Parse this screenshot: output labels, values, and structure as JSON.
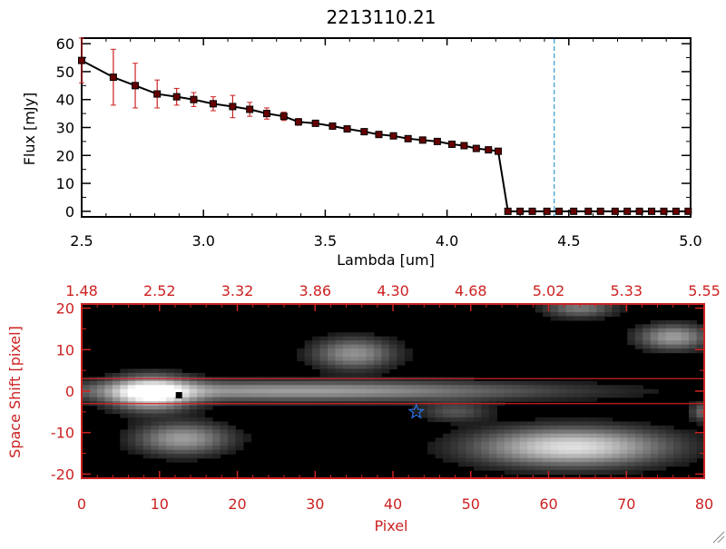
{
  "colors": {
    "axis_black": "#000000",
    "axis_red": "#cc2222",
    "errorbar_red": "#cc2222",
    "marker_fill": "#660000",
    "dashed_line_blue": "#3399cc",
    "star_blue": "#2a6fd8",
    "panel_bg": "#000000"
  },
  "chart_data": [
    {
      "type": "line",
      "title": "2213110.21",
      "xlabel": "Lambda [um]",
      "ylabel": "Flux [mJy]",
      "xlim": [
        2.5,
        5.0
      ],
      "ylim": [
        -2,
        62
      ],
      "x_ticks": [
        "2.5",
        "3.0",
        "3.5",
        "4.0",
        "4.5",
        "5.0"
      ],
      "x_tick_values": [
        2.5,
        3.0,
        3.5,
        4.0,
        4.5,
        5.0
      ],
      "y_ticks": [
        "0",
        "10",
        "20",
        "30",
        "40",
        "50",
        "60"
      ],
      "y_tick_values": [
        0,
        10,
        20,
        30,
        40,
        50,
        60
      ],
      "vertical_line": {
        "x": 4.44,
        "style": "dashed",
        "color": "blue"
      },
      "series": [
        {
          "x": [
            2.5,
            2.63,
            2.72,
            2.81,
            2.89,
            2.96,
            3.04,
            3.12,
            3.19,
            3.26,
            3.33,
            3.39,
            3.46,
            3.53,
            3.59,
            3.66,
            3.72,
            3.78,
            3.84,
            3.9,
            3.96,
            4.02,
            4.07,
            4.12,
            4.17,
            4.21,
            4.25,
            4.3,
            4.35,
            4.41,
            4.46,
            4.52,
            4.58,
            4.63,
            4.69,
            4.74,
            4.79,
            4.84,
            4.89,
            4.94,
            4.99
          ],
          "y": [
            54,
            48,
            45,
            42,
            41,
            40,
            38.5,
            37.5,
            36.5,
            35,
            34,
            32,
            31.5,
            30.5,
            29.5,
            28.5,
            27.5,
            27,
            26,
            25.5,
            25,
            24,
            23.5,
            22.5,
            22,
            21.5,
            0,
            0,
            0,
            0,
            0,
            0,
            0,
            0,
            0,
            0,
            0,
            0,
            0,
            0,
            0
          ],
          "yerr": [
            8,
            10,
            8,
            5,
            3,
            2.5,
            2.5,
            4,
            2.5,
            2,
            1.5,
            1.2,
            1,
            1,
            1,
            1,
            0.8,
            0.8,
            0.8,
            0.8,
            0.8,
            0.8,
            0.8,
            0.8,
            0.8,
            0.8,
            0,
            0,
            0,
            0,
            0,
            0,
            0,
            0,
            0,
            0,
            0,
            0,
            0,
            0,
            0
          ]
        }
      ]
    },
    {
      "type": "heatmap",
      "xlabel": "Pixel",
      "ylabel": "Space Shift [pixel]",
      "xlim": [
        0,
        80
      ],
      "ylim": [
        -21,
        21
      ],
      "x_ticks": [
        "0",
        "10",
        "20",
        "30",
        "40",
        "50",
        "60",
        "70",
        "80"
      ],
      "x_tick_values": [
        0,
        10,
        20,
        30,
        40,
        50,
        60,
        70,
        80
      ],
      "y_ticks": [
        "-20",
        "-10",
        "0",
        "10",
        "20"
      ],
      "y_tick_values": [
        -20,
        -10,
        0,
        10,
        20
      ],
      "top_axis_ticks": [
        "1.48",
        "2.52",
        "3.32",
        "3.86",
        "4.30",
        "4.68",
        "5.02",
        "5.33",
        "5.55"
      ],
      "top_axis_tick_values": [
        0,
        10,
        20,
        30,
        40,
        50,
        60,
        70,
        80
      ],
      "extraction_lines_y": [
        3,
        -3
      ],
      "black_marker": {
        "x": 12.5,
        "y": -1
      },
      "star_marker": {
        "x": 43,
        "y": -5
      },
      "blobs": [
        {
          "x": 9,
          "y": -0.5,
          "sx": 3.5,
          "sy": 2.6,
          "amp": 1.0
        },
        {
          "x": 28,
          "y": 0,
          "sx": 22,
          "sy": 1.6,
          "amp": 0.55
        },
        {
          "x": 35,
          "y": 9,
          "sx": 3.5,
          "sy": 2.5,
          "amp": 0.5
        },
        {
          "x": 13,
          "y": -11.5,
          "sx": 4,
          "sy": 2.5,
          "amp": 0.55
        },
        {
          "x": 63,
          "y": -13.5,
          "sx": 8,
          "sy": 3.0,
          "amp": 0.85
        },
        {
          "x": 76,
          "y": 13,
          "sx": 3,
          "sy": 2.0,
          "amp": 0.55
        },
        {
          "x": 64,
          "y": 20,
          "sx": 3,
          "sy": 1.5,
          "amp": 0.4
        },
        {
          "x": 48,
          "y": -5,
          "sx": 3,
          "sy": 1.5,
          "amp": 0.25
        },
        {
          "x": 80,
          "y": -5,
          "sx": 1.2,
          "sy": 1.5,
          "amp": 0.35
        }
      ]
    }
  ]
}
